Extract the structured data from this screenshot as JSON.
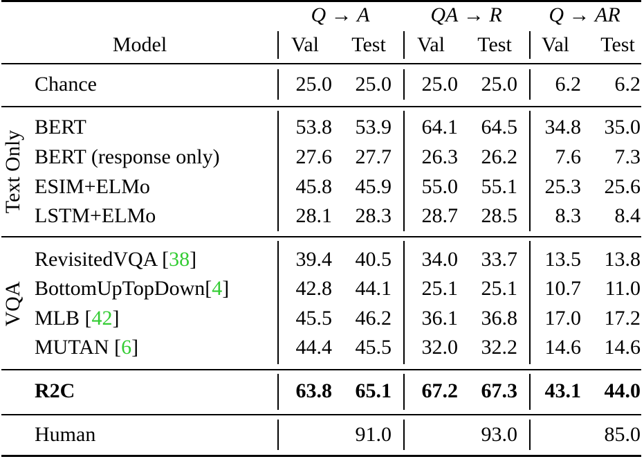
{
  "header": {
    "task_qa": {
      "left": "Q",
      "arrow": "→",
      "right": "A"
    },
    "task_qar": {
      "left": "QA",
      "arrow": "→",
      "right": "R"
    },
    "task_q_ar": {
      "left": "Q",
      "arrow": "→",
      "right": "AR"
    },
    "model": "Model",
    "val": "Val",
    "test": "Test"
  },
  "groups": {
    "text_only": "Text Only",
    "vqa": "VQA"
  },
  "rows": {
    "chance": {
      "model": "Chance",
      "v": [
        "25.0",
        "25.0",
        "25.0",
        "25.0",
        "6.2",
        "6.2"
      ]
    },
    "bert": {
      "model": "BERT",
      "v": [
        "53.8",
        "53.9",
        "64.1",
        "64.5",
        "34.8",
        "35.0"
      ]
    },
    "bert_resp": {
      "model": "BERT (response only)",
      "v": [
        "27.6",
        "27.7",
        "26.3",
        "26.2",
        "7.6",
        "7.3"
      ]
    },
    "esim": {
      "model": "ESIM+ELMo",
      "v": [
        "45.8",
        "45.9",
        "55.0",
        "55.1",
        "25.3",
        "25.6"
      ]
    },
    "lstm": {
      "model": "LSTM+ELMo",
      "v": [
        "28.1",
        "28.3",
        "28.7",
        "28.5",
        "8.3",
        "8.4"
      ]
    },
    "revisited": {
      "model": "RevisitedVQA",
      "cite": "38",
      "v": [
        "39.4",
        "40.5",
        "34.0",
        "33.7",
        "13.5",
        "13.8"
      ]
    },
    "bottomup": {
      "model": "BottomUpTopDown",
      "cite": "4",
      "v": [
        "42.8",
        "44.1",
        "25.1",
        "25.1",
        "10.7",
        "11.0"
      ]
    },
    "mlb": {
      "model": "MLB",
      "cite": "42",
      "v": [
        "45.5",
        "46.2",
        "36.1",
        "36.8",
        "17.0",
        "17.2"
      ]
    },
    "mutan": {
      "model": "MUTAN",
      "cite": "6",
      "v": [
        "44.4",
        "45.5",
        "32.0",
        "32.2",
        "14.6",
        "14.6"
      ]
    },
    "r2c": {
      "model": "R2C",
      "v": [
        "63.8",
        "65.1",
        "67.2",
        "67.3",
        "43.1",
        "44.0"
      ]
    },
    "human": {
      "model": "Human",
      "v": [
        "91.0",
        "93.0",
        "85.0"
      ]
    }
  },
  "colors": {
    "citation": "#33cc33"
  }
}
